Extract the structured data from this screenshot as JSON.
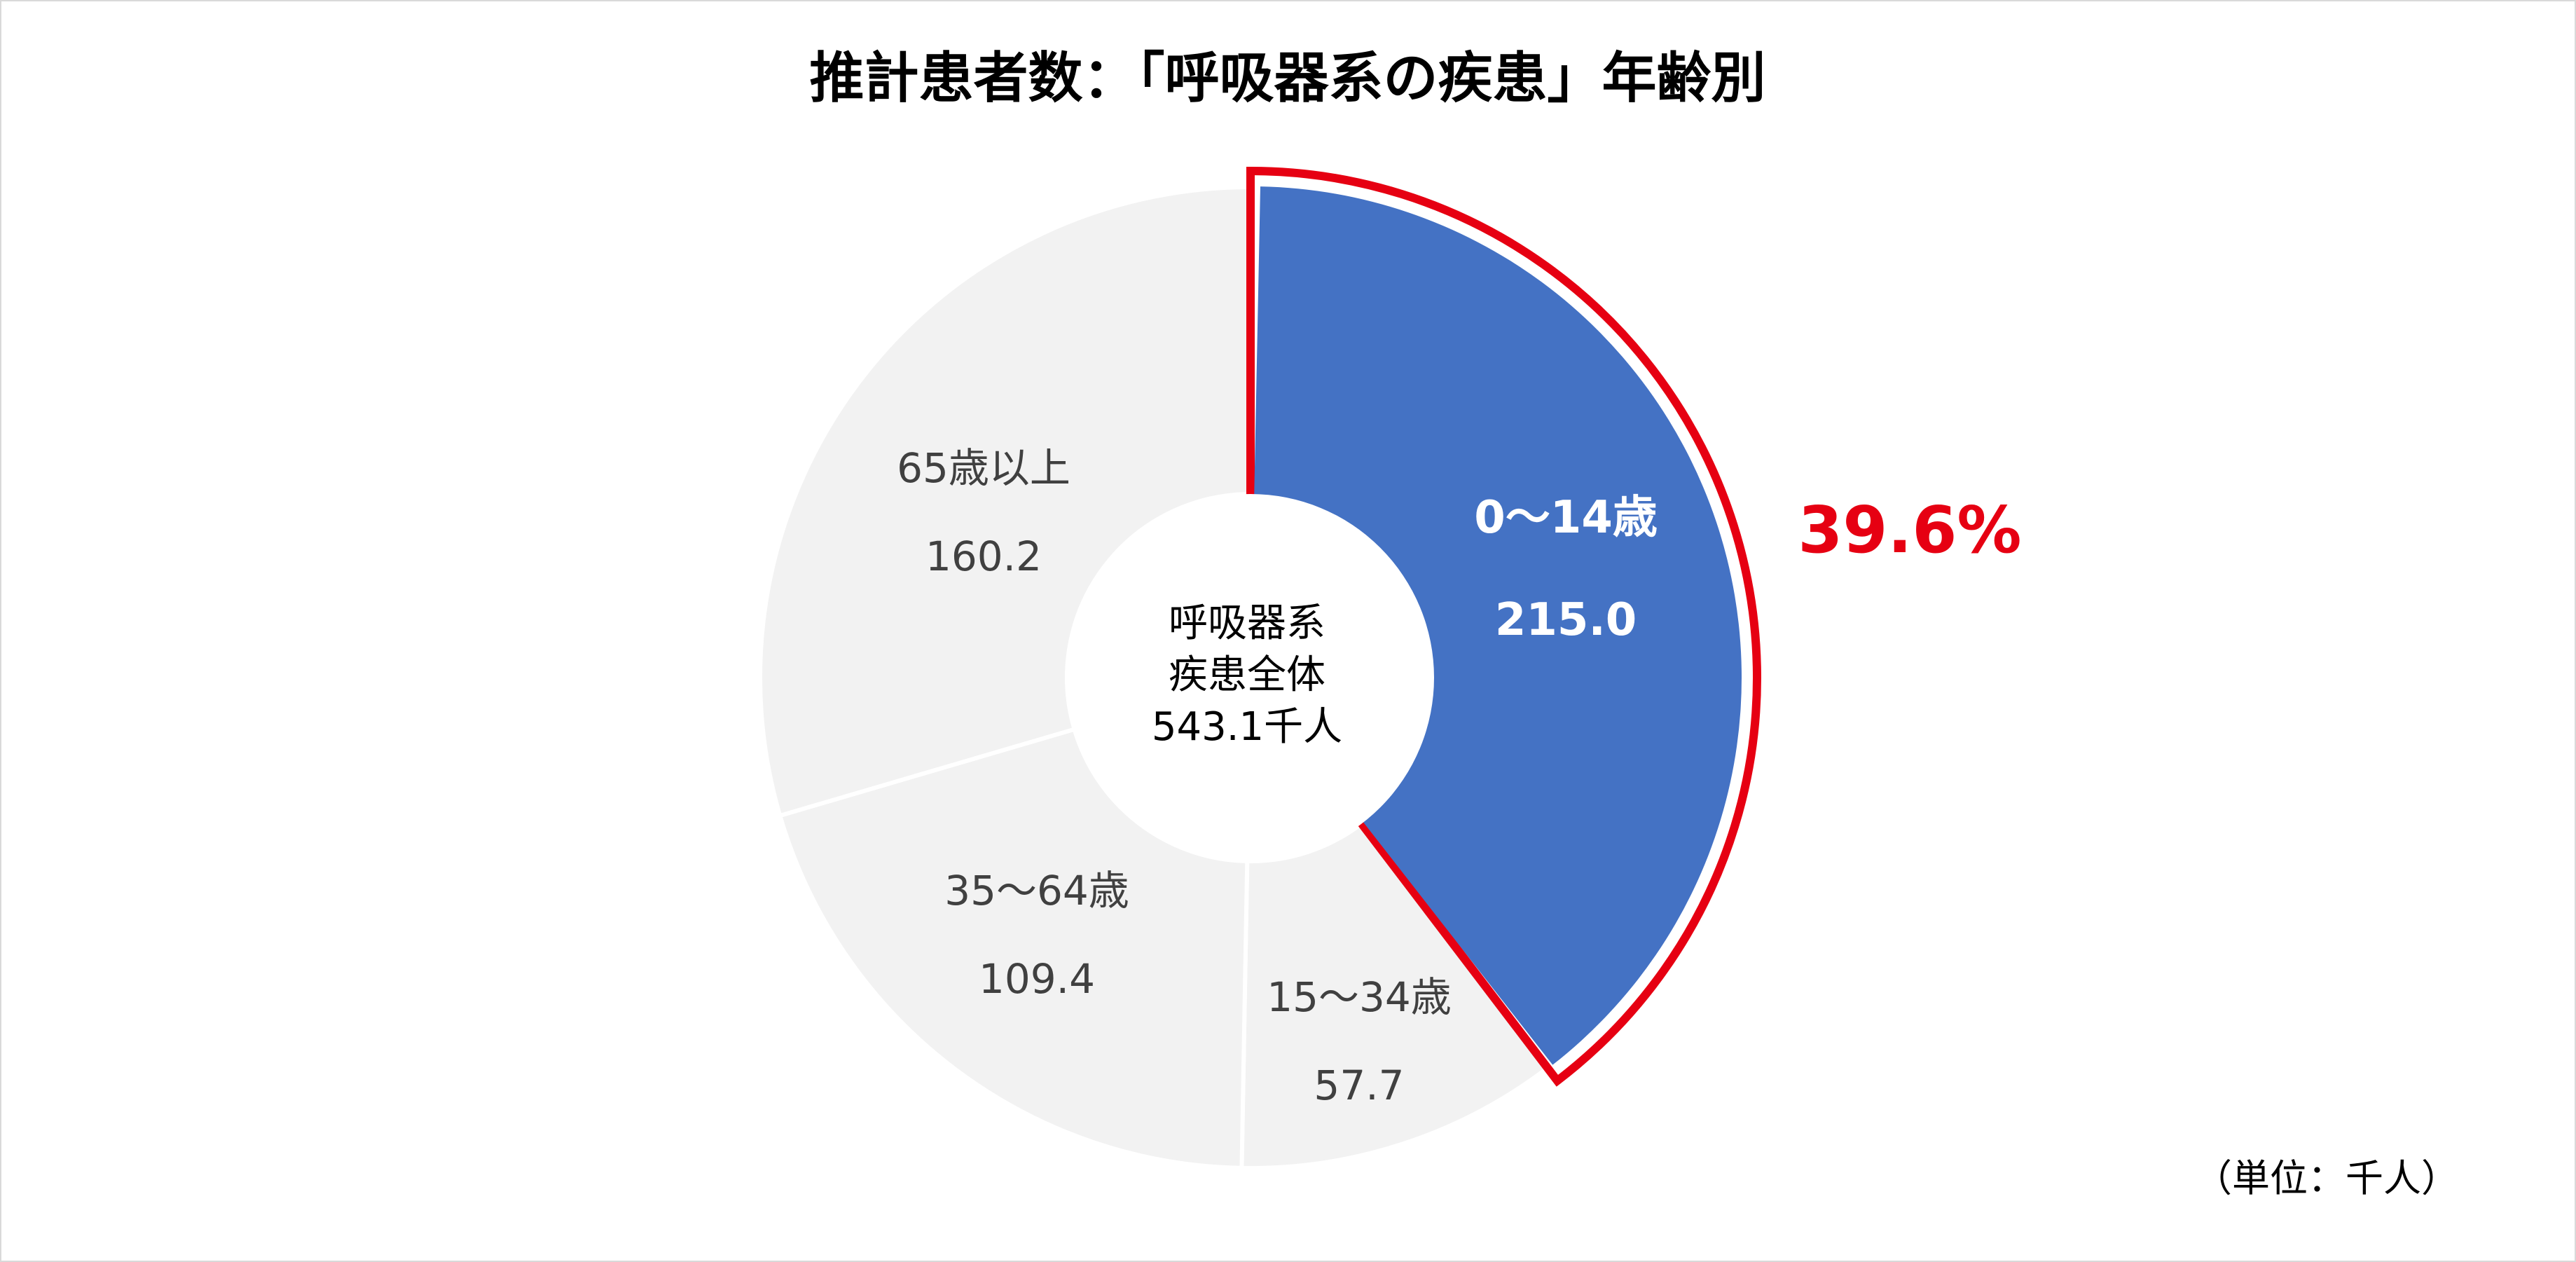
{
  "chart_data": {
    "type": "pie",
    "title": "推計患者数：「呼吸器系の疾患」年齢別",
    "unit": "（単位：千人）",
    "center": {
      "line1": "呼吸器系",
      "line2": "疾患全体",
      "line3": "543.1千人"
    },
    "total": 543.1,
    "slices": [
      {
        "label": "0～14歳",
        "value": 215.0,
        "value_text": "215.0",
        "color": "#4472c4",
        "highlight": true
      },
      {
        "label": "15～34歳",
        "value": 57.7,
        "value_text": "57.7",
        "color": "#f2f2f2",
        "highlight": false
      },
      {
        "label": "35～64歳",
        "value": 109.4,
        "value_text": "109.4",
        "color": "#f2f2f2",
        "highlight": false
      },
      {
        "label": "65歳以上",
        "value": 160.2,
        "value_text": "160.2",
        "color": "#f2f2f2",
        "highlight": false
      }
    ],
    "highlight_percent": "39.6%",
    "highlight_outline_color": "#e60012",
    "percent_color": "#e60012"
  }
}
